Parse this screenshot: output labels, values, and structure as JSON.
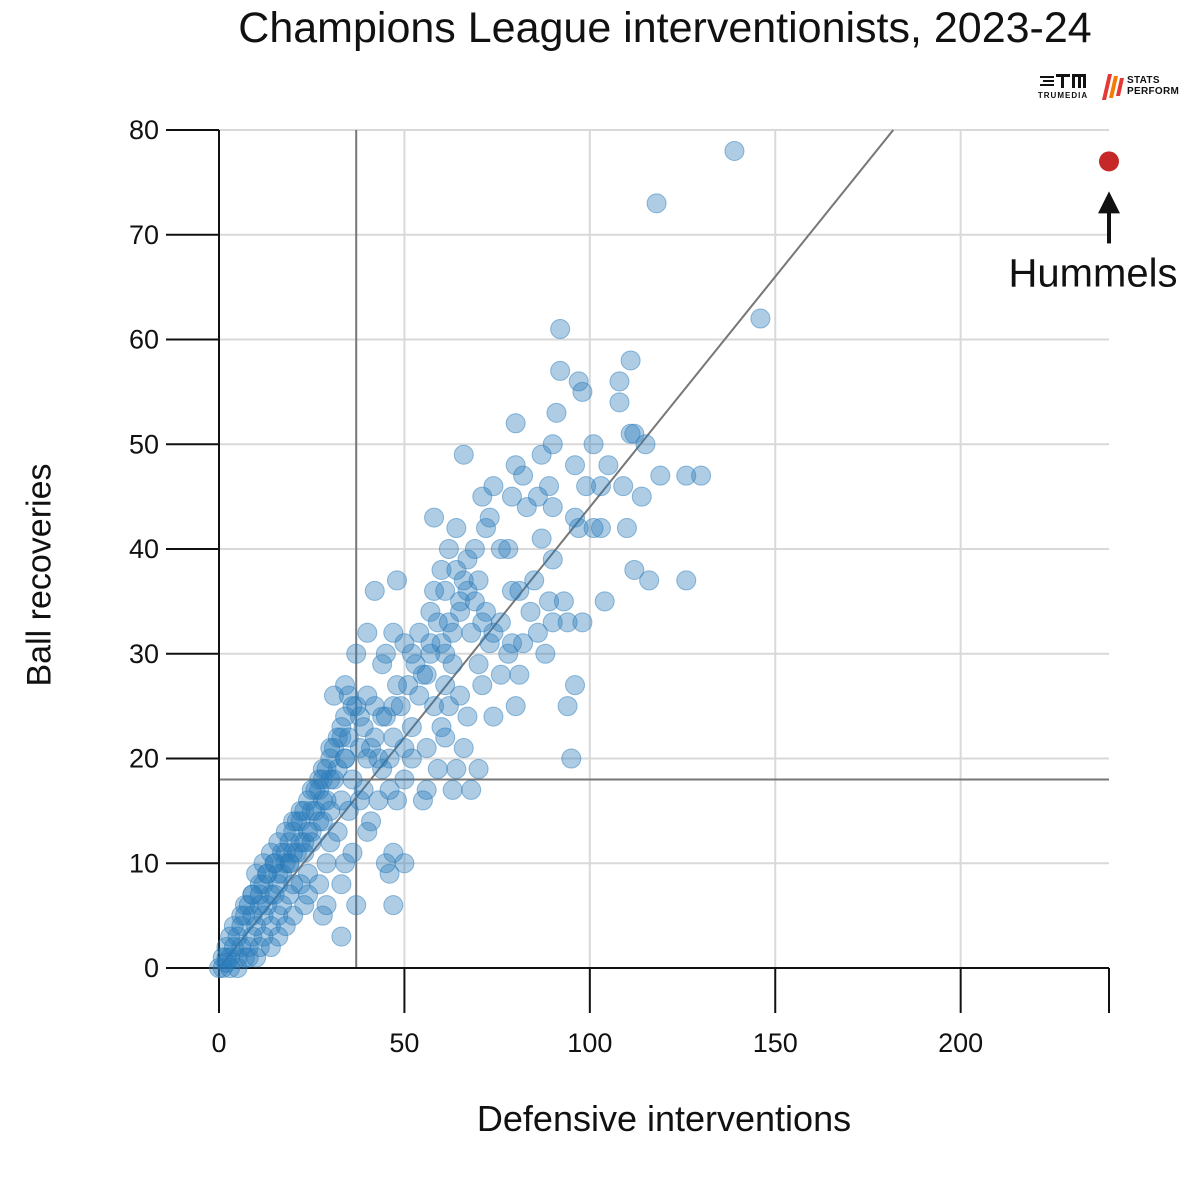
{
  "chart_data": {
    "type": "scatter",
    "title": "Champions League interventionists, 2023-24",
    "xlabel": "Defensive interventions",
    "ylabel": "Ball recoveries",
    "xlim": [
      0,
      240
    ],
    "ylim": [
      0,
      80
    ],
    "xticks": [
      "0",
      "50",
      "100",
      "150",
      "200"
    ],
    "yticks": [
      "0",
      "10",
      "20",
      "30",
      "40",
      "50",
      "60",
      "70",
      "80"
    ],
    "grid": true,
    "reference_lines": {
      "x_average": 37,
      "y_average": 18,
      "trend_slope": 0.44
    },
    "colors": {
      "points": "#2b7bba",
      "highlight": "#c62828",
      "grid": "#d9d9d9",
      "reference": "#777777"
    },
    "annotation": {
      "label": "Hummels",
      "x": 240,
      "y": 77
    },
    "series": [
      {
        "points": [
          [
            139,
            78
          ],
          [
            118,
            73
          ],
          [
            146,
            62
          ],
          [
            92,
            61
          ],
          [
            111,
            58
          ],
          [
            92,
            57
          ],
          [
            97,
            56
          ],
          [
            108,
            56
          ],
          [
            98,
            55
          ],
          [
            80,
            52
          ],
          [
            91,
            53
          ],
          [
            108,
            54
          ],
          [
            66,
            49
          ],
          [
            87,
            49
          ],
          [
            90,
            50
          ],
          [
            101,
            50
          ],
          [
            111,
            51
          ],
          [
            112,
            51
          ],
          [
            115,
            50
          ],
          [
            96,
            48
          ],
          [
            105,
            48
          ],
          [
            80,
            48
          ],
          [
            82,
            47
          ],
          [
            119,
            47
          ],
          [
            126,
            47
          ],
          [
            130,
            47
          ],
          [
            71,
            45
          ],
          [
            74,
            46
          ],
          [
            79,
            45
          ],
          [
            86,
            45
          ],
          [
            89,
            46
          ],
          [
            99,
            46
          ],
          [
            103,
            46
          ],
          [
            109,
            46
          ],
          [
            114,
            45
          ],
          [
            58,
            43
          ],
          [
            73,
            43
          ],
          [
            83,
            44
          ],
          [
            90,
            44
          ],
          [
            96,
            43
          ],
          [
            64,
            42
          ],
          [
            72,
            42
          ],
          [
            87,
            41
          ],
          [
            97,
            42
          ],
          [
            101,
            42
          ],
          [
            103,
            42
          ],
          [
            110,
            42
          ],
          [
            62,
            40
          ],
          [
            69,
            40
          ],
          [
            76,
            40
          ],
          [
            78,
            40
          ],
          [
            90,
            39
          ],
          [
            60,
            38
          ],
          [
            64,
            38
          ],
          [
            67,
            39
          ],
          [
            112,
            38
          ],
          [
            116,
            37
          ],
          [
            126,
            37
          ],
          [
            48,
            37
          ],
          [
            66,
            37
          ],
          [
            70,
            37
          ],
          [
            79,
            36
          ],
          [
            81,
            36
          ],
          [
            58,
            36
          ],
          [
            61,
            36
          ],
          [
            42,
            36
          ],
          [
            85,
            37
          ],
          [
            89,
            35
          ],
          [
            93,
            35
          ],
          [
            57,
            34
          ],
          [
            65,
            35
          ],
          [
            72,
            34
          ],
          [
            84,
            34
          ],
          [
            104,
            35
          ],
          [
            54,
            32
          ],
          [
            62,
            33
          ],
          [
            76,
            33
          ],
          [
            86,
            32
          ],
          [
            90,
            33
          ],
          [
            94,
            33
          ],
          [
            98,
            33
          ],
          [
            40,
            32
          ],
          [
            47,
            32
          ],
          [
            50,
            31
          ],
          [
            60,
            31
          ],
          [
            68,
            32
          ],
          [
            74,
            32
          ],
          [
            79,
            31
          ],
          [
            82,
            31
          ],
          [
            37,
            30
          ],
          [
            45,
            30
          ],
          [
            52,
            30
          ],
          [
            57,
            30
          ],
          [
            63,
            29
          ],
          [
            70,
            29
          ],
          [
            78,
            30
          ],
          [
            88,
            30
          ],
          [
            44,
            29
          ],
          [
            56,
            28
          ],
          [
            61,
            27
          ],
          [
            76,
            28
          ],
          [
            81,
            28
          ],
          [
            96,
            27
          ],
          [
            34,
            27
          ],
          [
            40,
            26
          ],
          [
            48,
            27
          ],
          [
            54,
            26
          ],
          [
            65,
            26
          ],
          [
            71,
            27
          ],
          [
            31,
            26
          ],
          [
            36,
            25
          ],
          [
            42,
            25
          ],
          [
            47,
            25
          ],
          [
            58,
            25
          ],
          [
            62,
            25
          ],
          [
            80,
            25
          ],
          [
            94,
            25
          ],
          [
            38,
            24
          ],
          [
            44,
            24
          ],
          [
            52,
            23
          ],
          [
            60,
            23
          ],
          [
            67,
            24
          ],
          [
            74,
            24
          ],
          [
            33,
            22
          ],
          [
            38,
            21
          ],
          [
            42,
            22
          ],
          [
            50,
            21
          ],
          [
            56,
            21
          ],
          [
            61,
            22
          ],
          [
            66,
            21
          ],
          [
            30,
            21
          ],
          [
            34,
            20
          ],
          [
            40,
            20
          ],
          [
            46,
            20
          ],
          [
            52,
            20
          ],
          [
            59,
            19
          ],
          [
            64,
            19
          ],
          [
            70,
            19
          ],
          [
            95,
            20
          ],
          [
            28,
            19
          ],
          [
            36,
            18
          ],
          [
            44,
            19
          ],
          [
            50,
            18
          ],
          [
            56,
            17
          ],
          [
            63,
            17
          ],
          [
            68,
            17
          ],
          [
            39,
            17
          ],
          [
            46,
            17
          ],
          [
            27,
            17
          ],
          [
            33,
            16
          ],
          [
            38,
            16
          ],
          [
            43,
            16
          ],
          [
            48,
            16
          ],
          [
            55,
            16
          ],
          [
            25,
            15
          ],
          [
            30,
            15
          ],
          [
            35,
            15
          ],
          [
            41,
            14
          ],
          [
            22,
            14
          ],
          [
            28,
            14
          ],
          [
            32,
            13
          ],
          [
            40,
            13
          ],
          [
            20,
            13
          ],
          [
            25,
            12
          ],
          [
            30,
            12
          ],
          [
            36,
            11
          ],
          [
            47,
            11
          ],
          [
            18,
            11
          ],
          [
            23,
            11
          ],
          [
            45,
            10
          ],
          [
            50,
            10
          ],
          [
            29,
            10
          ],
          [
            34,
            10
          ],
          [
            15,
            10
          ],
          [
            19,
            10
          ],
          [
            24,
            9
          ],
          [
            13,
            9
          ],
          [
            17,
            9
          ],
          [
            22,
            8
          ],
          [
            27,
            8
          ],
          [
            33,
            8
          ],
          [
            12,
            8
          ],
          [
            16,
            8
          ],
          [
            20,
            8
          ],
          [
            46,
            9
          ],
          [
            11,
            7
          ],
          [
            15,
            7
          ],
          [
            19,
            7
          ],
          [
            24,
            7
          ],
          [
            9,
            7
          ],
          [
            13,
            6
          ],
          [
            17,
            6
          ],
          [
            23,
            6
          ],
          [
            29,
            6
          ],
          [
            37,
            6
          ],
          [
            47,
            6
          ],
          [
            8,
            6
          ],
          [
            12,
            5
          ],
          [
            16,
            5
          ],
          [
            20,
            5
          ],
          [
            28,
            5
          ],
          [
            7,
            5
          ],
          [
            10,
            4
          ],
          [
            14,
            4
          ],
          [
            18,
            4
          ],
          [
            6,
            4
          ],
          [
            9,
            3
          ],
          [
            12,
            3
          ],
          [
            16,
            3
          ],
          [
            33,
            3
          ],
          [
            5,
            3
          ],
          [
            8,
            2
          ],
          [
            11,
            2
          ],
          [
            14,
            2
          ],
          [
            4,
            2
          ],
          [
            7,
            1
          ],
          [
            10,
            1
          ],
          [
            3,
            1
          ],
          [
            5,
            1
          ],
          [
            2,
            0.5
          ],
          [
            1,
            0
          ],
          [
            3,
            0
          ],
          [
            5,
            0
          ],
          [
            8,
            1
          ],
          [
            6,
            2
          ],
          [
            9,
            5
          ],
          [
            11,
            6
          ],
          [
            14,
            7
          ],
          [
            16,
            9
          ],
          [
            18,
            10
          ],
          [
            20,
            11
          ],
          [
            22,
            12
          ],
          [
            24,
            13
          ],
          [
            26,
            15
          ],
          [
            28,
            16
          ],
          [
            30,
            18
          ],
          [
            32,
            19
          ],
          [
            34,
            20
          ],
          [
            35,
            22
          ],
          [
            33,
            23
          ],
          [
            31,
            21
          ],
          [
            29,
            19
          ],
          [
            27,
            18
          ],
          [
            25,
            17
          ],
          [
            23,
            15
          ],
          [
            21,
            14
          ],
          [
            19,
            12
          ],
          [
            17,
            11
          ],
          [
            15,
            10
          ],
          [
            13,
            9
          ],
          [
            11,
            8
          ],
          [
            9,
            7
          ],
          [
            7,
            6
          ],
          [
            6,
            5
          ],
          [
            4,
            4
          ],
          [
            3,
            3
          ],
          [
            2,
            2
          ],
          [
            1,
            1
          ],
          [
            0,
            0
          ],
          [
            2,
            1
          ],
          [
            10,
            9
          ],
          [
            12,
            10
          ],
          [
            14,
            11
          ],
          [
            16,
            12
          ],
          [
            18,
            13
          ],
          [
            20,
            14
          ],
          [
            22,
            15
          ],
          [
            24,
            16
          ],
          [
            26,
            17
          ],
          [
            28,
            18
          ],
          [
            30,
            20
          ],
          [
            32,
            22
          ],
          [
            34,
            24
          ],
          [
            31,
            18
          ],
          [
            29,
            16
          ],
          [
            27,
            14
          ],
          [
            25,
            13
          ],
          [
            23,
            12
          ],
          [
            21,
            11
          ],
          [
            19,
            10
          ],
          [
            35,
            26
          ],
          [
            37,
            25
          ],
          [
            39,
            23
          ],
          [
            41,
            21
          ],
          [
            43,
            20
          ],
          [
            45,
            24
          ],
          [
            47,
            22
          ],
          [
            49,
            25
          ],
          [
            51,
            27
          ],
          [
            53,
            29
          ],
          [
            55,
            28
          ],
          [
            57,
            31
          ],
          [
            59,
            33
          ],
          [
            61,
            30
          ],
          [
            63,
            32
          ],
          [
            65,
            34
          ],
          [
            67,
            36
          ],
          [
            69,
            35
          ],
          [
            71,
            33
          ],
          [
            73,
            31
          ]
        ]
      }
    ]
  },
  "logos": {
    "left_name": "TRUMEDIA",
    "right_name": "STATS PERFORM"
  }
}
